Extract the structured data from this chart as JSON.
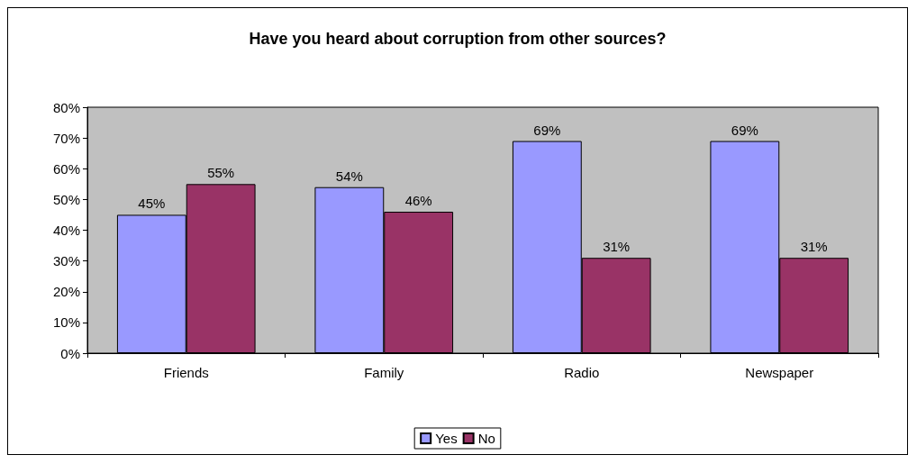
{
  "chart_data": {
    "type": "bar",
    "title": "Have you heard about corruption from other sources?",
    "categories": [
      "Friends",
      "Family",
      "Radio",
      "Newspaper"
    ],
    "series": [
      {
        "name": "Yes",
        "color": "#9999ff",
        "values": [
          45,
          54,
          69,
          69
        ],
        "value_labels": [
          "45%",
          "54%",
          "69%",
          "69%"
        ]
      },
      {
        "name": "No",
        "color": "#993366",
        "values": [
          55,
          46,
          31,
          31
        ],
        "value_labels": [
          "55%",
          "46%",
          "31%",
          "31%"
        ]
      }
    ],
    "ylim": [
      0,
      80
    ],
    "yticks": [
      {
        "value": 0,
        "label": "0%"
      },
      {
        "value": 10,
        "label": "10%"
      },
      {
        "value": 20,
        "label": "20%"
      },
      {
        "value": 30,
        "label": "30%"
      },
      {
        "value": 40,
        "label": "40%"
      },
      {
        "value": 50,
        "label": "50%"
      },
      {
        "value": 60,
        "label": "60%"
      },
      {
        "value": 70,
        "label": "70%"
      },
      {
        "value": 80,
        "label": "80%"
      }
    ],
    "grid": false,
    "legend": "bottom"
  }
}
